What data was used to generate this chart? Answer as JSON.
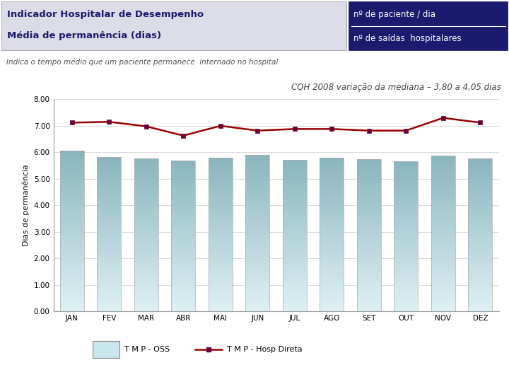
{
  "title_left_line1": "Indicador Hospitalar de Desempenho",
  "title_left_line2": "Média de permanência (dias)",
  "title_right_line1": "nº de paciente / dia",
  "title_right_line2": "nº de saídas  hospitalares",
  "subtitle": "Indica o tempo médio que um paciente permanece  internado no hospital",
  "chart_title": "CQH 2008 variação da mediana – 3,80 a 4,05 dias",
  "categories": [
    "JAN",
    "FEV",
    "MAR",
    "ABR",
    "MAI",
    "JUN",
    "JUL",
    "AGO",
    "SET",
    "OUT",
    "NOV",
    "DEZ"
  ],
  "bar_values": [
    6.05,
    5.82,
    5.78,
    5.7,
    5.8,
    5.9,
    5.72,
    5.8,
    5.73,
    5.67,
    5.88,
    5.78
  ],
  "line_values": [
    7.12,
    7.15,
    6.98,
    6.63,
    7.0,
    6.82,
    6.88,
    6.88,
    6.82,
    6.82,
    7.3,
    7.12
  ],
  "bar_color_top": "#8ab4be",
  "bar_color_bottom": "#ddf0f4",
  "line_color": "#990000",
  "line_marker": "s",
  "line_marker_color": "#660033",
  "ylabel": "Dias de permanência",
  "ylim": [
    0,
    8.0
  ],
  "yticks": [
    0.0,
    1.0,
    2.0,
    3.0,
    4.0,
    5.0,
    6.0,
    7.0,
    8.0
  ],
  "header_bg_left": "#dcdce8",
  "header_bg_right": "#1a1a6e",
  "header_text_left_color": "#1a1a6e",
  "header_text_right_color": "#ffffff",
  "subtitle_color": "#555555",
  "chart_title_color": "#444444",
  "legend_oss_label": "T M P - OSS",
  "legend_hosp_label": "T M P - Hosp Direta",
  "bg_color": "#ffffff",
  "plot_bg_color": "#ffffff",
  "grid_color": "#cccccc",
  "header_separator_color": "#ffffff"
}
